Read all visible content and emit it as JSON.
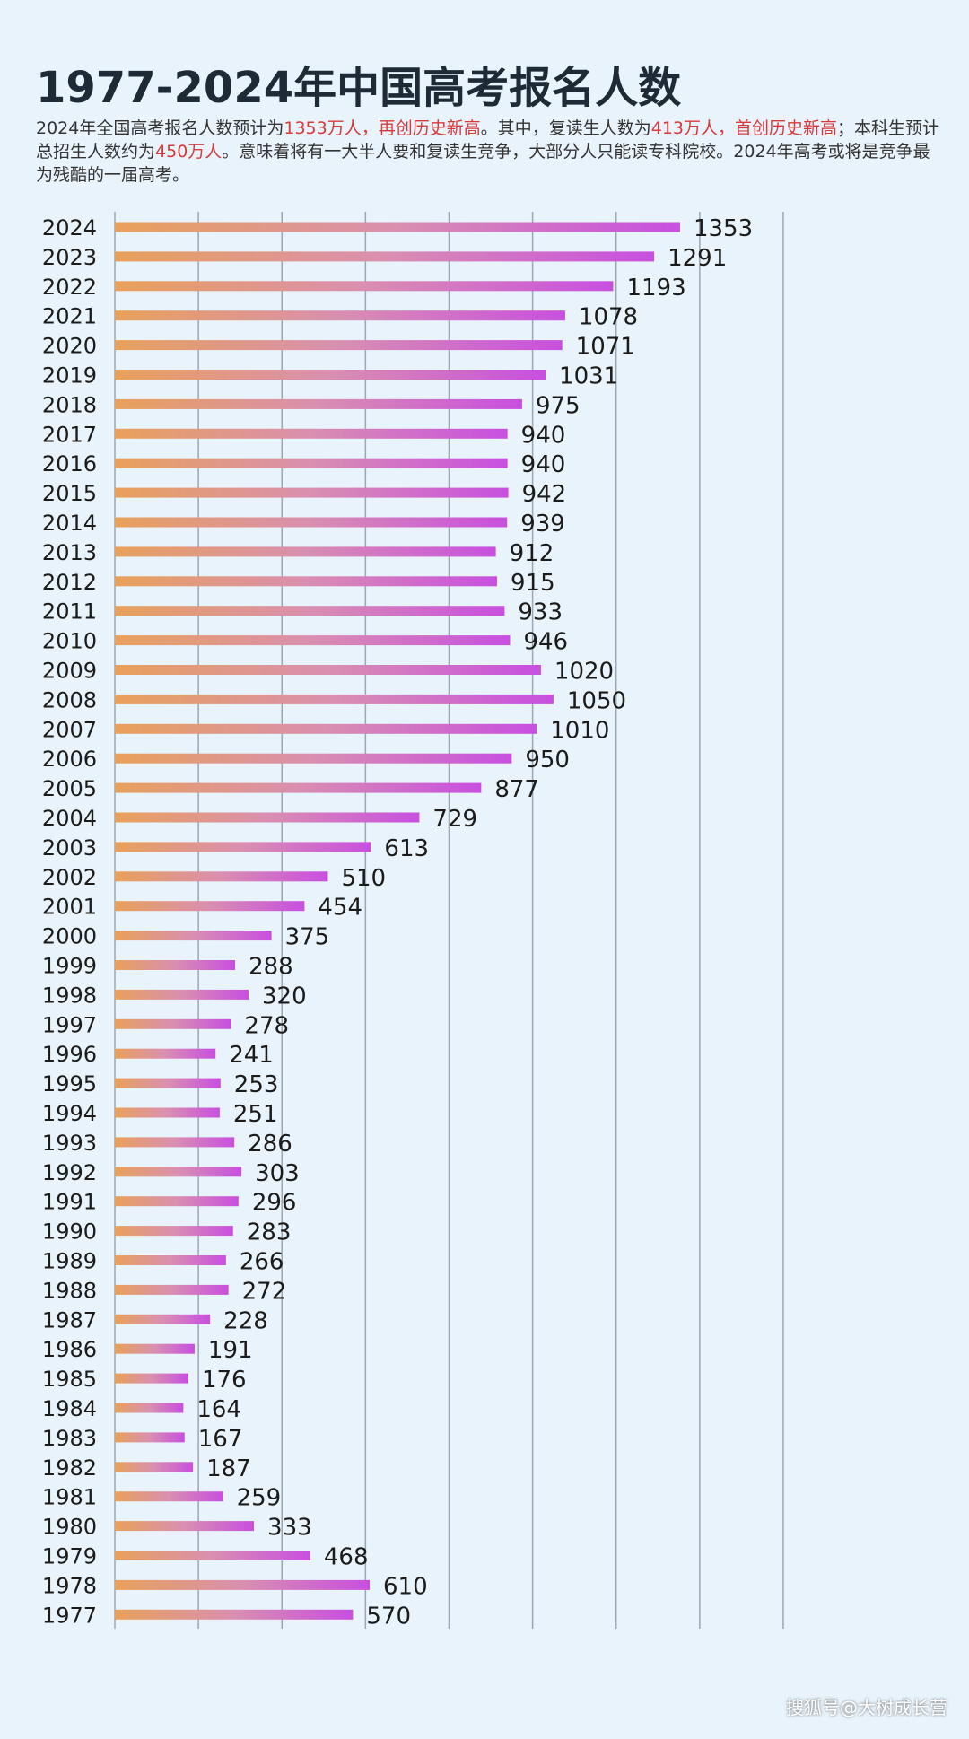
{
  "header": {
    "title": "1977-2024年中国高考报名人数",
    "desc_parts": [
      {
        "text": "2024年全国高考报名人数预计为",
        "hl": false
      },
      {
        "text": "1353万人，再创历史新高",
        "hl": true
      },
      {
        "text": "。其中，复读生人数为",
        "hl": false
      },
      {
        "text": "413万人，首创历史新高",
        "hl": true
      },
      {
        "text": "；本科生预计总招生人数约为",
        "hl": false
      },
      {
        "text": "450万人",
        "hl": true
      },
      {
        "text": "。意味着将有一大半人要和复读生竞争，大部分人只能读专科院校。2024年高考或将是竞争最为残酷的一届高考。",
        "hl": false
      }
    ]
  },
  "colors": {
    "bar_start": "#e8a15a",
    "bar_end": "#c84fe0",
    "highlight": "#d83a3a",
    "grid": "#9aa7b4"
  },
  "watermark": "搜狐号@大树成长营",
  "chart_data": {
    "type": "bar",
    "orientation": "horizontal",
    "title": "1977-2024年中国高考报名人数",
    "xlim": [
      0,
      1600
    ],
    "grid": true,
    "categories": [
      "2024",
      "2023",
      "2022",
      "2021",
      "2020",
      "2019",
      "2018",
      "2017",
      "2016",
      "2015",
      "2014",
      "2013",
      "2012",
      "2011",
      "2010",
      "2009",
      "2008",
      "2007",
      "2006",
      "2005",
      "2004",
      "2003",
      "2002",
      "2001",
      "2000",
      "1999",
      "1998",
      "1997",
      "1996",
      "1995",
      "1994",
      "1993",
      "1992",
      "1991",
      "1990",
      "1989",
      "1988",
      "1987",
      "1986",
      "1985",
      "1984",
      "1983",
      "1982",
      "1981",
      "1980",
      "1979",
      "1978",
      "1977"
    ],
    "values": [
      1353,
      1291,
      1193,
      1078,
      1071,
      1031,
      975,
      940,
      940,
      942,
      939,
      912,
      915,
      933,
      946,
      1020,
      1050,
      1010,
      950,
      877,
      729,
      613,
      510,
      454,
      375,
      288,
      320,
      278,
      241,
      253,
      251,
      286,
      303,
      296,
      283,
      266,
      272,
      228,
      191,
      176,
      164,
      167,
      187,
      259,
      333,
      468,
      610,
      570
    ]
  }
}
